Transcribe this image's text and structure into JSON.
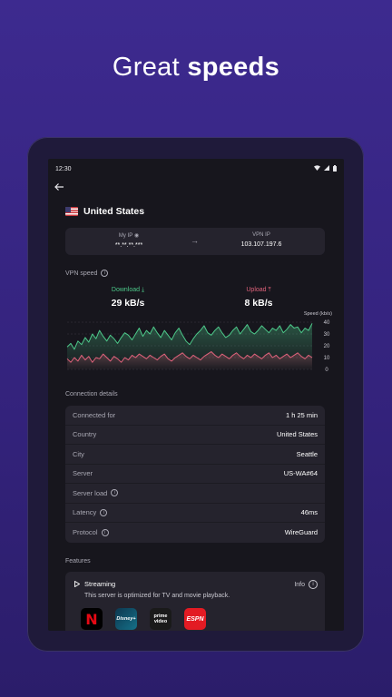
{
  "headline": {
    "normal": "Great ",
    "bold": "speeds"
  },
  "statusbar": {
    "time": "12:30"
  },
  "country": {
    "name": "United States"
  },
  "ip": {
    "my_label": "My IP",
    "my_value": "**.**.**.***",
    "vpn_label": "VPN IP",
    "vpn_value": "103.107.197.6"
  },
  "speed": {
    "section_label": "VPN speed",
    "download_label": "Download",
    "download_value": "29 kB/s",
    "upload_label": "Upload",
    "upload_value": "8 kB/s"
  },
  "chart_data": {
    "type": "area",
    "title": "",
    "ylabel": "Speed (kb/s)",
    "ylim": [
      0,
      40
    ],
    "yticks": [
      "40",
      "30",
      "20",
      "10",
      "0"
    ],
    "series": [
      {
        "name": "Download",
        "color": "#4dc98a",
        "values": [
          19,
          22,
          17,
          24,
          21,
          27,
          23,
          30,
          26,
          33,
          28,
          24,
          29,
          26,
          22,
          27,
          31,
          29,
          25,
          30,
          35,
          28,
          33,
          30,
          36,
          31,
          27,
          33,
          29,
          25,
          31,
          35,
          29,
          24,
          21,
          26,
          30,
          33,
          37,
          31,
          29,
          33,
          36,
          31,
          27,
          29,
          33,
          36,
          30,
          34,
          38,
          32,
          30,
          33,
          37,
          34,
          31,
          35,
          33,
          37,
          31,
          34,
          38,
          35,
          36,
          31,
          35,
          33,
          39
        ]
      },
      {
        "name": "Upload",
        "color": "#e0627b",
        "values": [
          9,
          6,
          10,
          7,
          12,
          8,
          11,
          6,
          10,
          9,
          13,
          10,
          7,
          11,
          9,
          6,
          10,
          8,
          12,
          10,
          13,
          11,
          9,
          12,
          10,
          8,
          11,
          13,
          9,
          7,
          10,
          12,
          14,
          11,
          9,
          12,
          10,
          8,
          11,
          13,
          15,
          12,
          10,
          13,
          11,
          9,
          12,
          14,
          11,
          9,
          12,
          10,
          13,
          11,
          9,
          12,
          14,
          10,
          12,
          9,
          11,
          13,
          10,
          12,
          14,
          11,
          9,
          12,
          10
        ]
      }
    ],
    "grid": true,
    "legend": "none"
  },
  "connection": {
    "section_label": "Connection details",
    "rows": [
      {
        "key": "Connected for",
        "value": "1 h 25 min"
      },
      {
        "key": "Country",
        "value": "United States"
      },
      {
        "key": "City",
        "value": "Seattle"
      },
      {
        "key": "Server",
        "value": "US-WA#64"
      },
      {
        "key": "Server load",
        "value": ""
      },
      {
        "key": "Latency",
        "value": "46ms"
      },
      {
        "key": "Protocol",
        "value": "WireGuard"
      }
    ]
  },
  "features": {
    "section_label": "Features",
    "title": "Streaming",
    "info_label": "Info",
    "description": "This server is optimized for TV and movie playback.",
    "apps": [
      {
        "name": "N",
        "icon": "netflix-icon",
        "bg": "#000000",
        "color": "#e50914"
      },
      {
        "name": "Disney+",
        "icon": "disney-plus-icon",
        "bg": "#0f4a5e",
        "color": "#ffffff"
      },
      {
        "name": "prime video",
        "icon": "prime-video-icon",
        "bg": "#1a1a1a",
        "color": "#ffffff"
      },
      {
        "name": "ESPN",
        "icon": "espn-icon",
        "bg": "#e31b23",
        "color": "#ffffff"
      }
    ]
  },
  "colors": {
    "accent_download": "#4dc98a",
    "accent_upload": "#e0627b",
    "background": "#3d2a8f"
  }
}
